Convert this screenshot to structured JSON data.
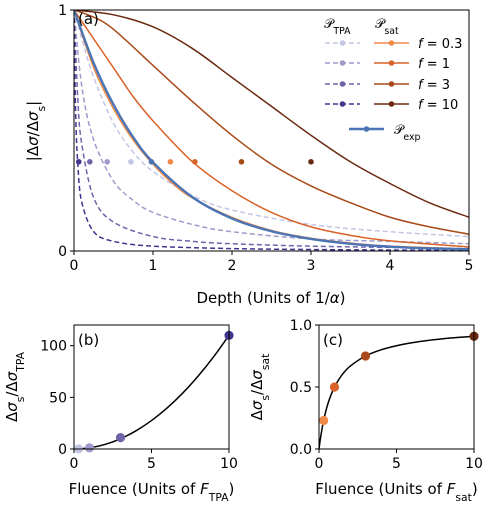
{
  "chart_data": [
    {
      "panel": "(a)",
      "type": "line",
      "xlabel": "Depth (Units of 1/α)",
      "ylabel": "|Δσ/Δσs|",
      "xlim": [
        0,
        5
      ],
      "ylim": [
        0,
        1
      ],
      "xticks": [
        "0",
        "1",
        "2",
        "3",
        "4",
        "5"
      ],
      "yticks": [
        "0",
        "1"
      ],
      "legend": {
        "placement": "top-right",
        "column_headers": [
          "𝒫_TPA",
          "𝒫_sat"
        ],
        "row_labels": [
          "f = 0.3",
          "f = 1",
          "f = 3",
          "f = 10"
        ],
        "exp_label": "𝒫_exp"
      },
      "series": [
        {
          "name": "P_TPA f=0.3",
          "style": "dashed",
          "color": "#c3c6e3",
          "x": [
            0,
            0.1,
            0.25,
            0.5,
            0.75,
            1,
            1.5,
            2,
            3,
            4,
            5
          ],
          "y": [
            1,
            0.88,
            0.72,
            0.53,
            0.41,
            0.33,
            0.23,
            0.17,
            0.11,
            0.08,
            0.06
          ]
        },
        {
          "name": "P_TPA f=1",
          "style": "dashed",
          "color": "#9e9acb",
          "x": [
            0,
            0.1,
            0.25,
            0.5,
            0.75,
            1,
            1.5,
            2,
            3,
            4,
            5
          ],
          "y": [
            1,
            0.68,
            0.46,
            0.29,
            0.21,
            0.16,
            0.11,
            0.08,
            0.05,
            0.04,
            0.03
          ]
        },
        {
          "name": "P_TPA f=3",
          "style": "dashed",
          "color": "#6e65a8",
          "x": [
            0,
            0.05,
            0.1,
            0.25,
            0.5,
            1,
            1.5,
            2,
            3,
            4,
            5
          ],
          "y": [
            1,
            0.62,
            0.44,
            0.22,
            0.12,
            0.06,
            0.04,
            0.03,
            0.02,
            0.015,
            0.01
          ]
        },
        {
          "name": "P_TPA f=10",
          "style": "dashed",
          "color": "#3f3690",
          "x": [
            0,
            0.02,
            0.05,
            0.1,
            0.25,
            0.5,
            1,
            2,
            3,
            4,
            5
          ],
          "y": [
            1,
            0.58,
            0.35,
            0.2,
            0.08,
            0.04,
            0.02,
            0.01,
            0.006,
            0.004,
            0.003
          ]
        },
        {
          "name": "P_sat f=0.3",
          "style": "solid",
          "color": "#f08a48",
          "x": [
            0,
            0.25,
            0.5,
            0.75,
            1,
            1.25,
            1.5,
            2,
            2.5,
            3,
            3.5,
            4,
            5
          ],
          "y": [
            1,
            0.76,
            0.59,
            0.46,
            0.36,
            0.28,
            0.22,
            0.14,
            0.085,
            0.053,
            0.033,
            0.02,
            0.008
          ]
        },
        {
          "name": "P_sat f=1",
          "style": "solid",
          "color": "#d96228",
          "x": [
            0,
            0.25,
            0.5,
            0.75,
            1,
            1.5,
            2,
            2.5,
            3,
            3.5,
            4,
            5
          ],
          "y": [
            1,
            0.88,
            0.76,
            0.64,
            0.54,
            0.37,
            0.25,
            0.16,
            0.1,
            0.065,
            0.042,
            0.017
          ]
        },
        {
          "name": "P_sat f=3",
          "style": "solid",
          "color": "#a84a18",
          "x": [
            0,
            0.25,
            0.5,
            1,
            1.5,
            2,
            2.5,
            3,
            3.5,
            4,
            4.5,
            5
          ],
          "y": [
            1,
            0.97,
            0.92,
            0.77,
            0.62,
            0.48,
            0.36,
            0.27,
            0.2,
            0.14,
            0.1,
            0.07
          ]
        },
        {
          "name": "P_sat f=10",
          "style": "solid",
          "color": "#6b2a10",
          "x": [
            0,
            0.5,
            1,
            1.5,
            2,
            2.5,
            3,
            3.5,
            4,
            4.5,
            5
          ],
          "y": [
            1,
            0.98,
            0.93,
            0.84,
            0.72,
            0.6,
            0.48,
            0.37,
            0.28,
            0.2,
            0.14
          ]
        },
        {
          "name": "P_exp",
          "style": "solid",
          "color": "#4a74b4",
          "x": [
            0,
            0.25,
            0.5,
            0.75,
            1,
            1.5,
            2,
            2.5,
            3,
            3.5,
            4,
            4.5,
            5
          ],
          "y": [
            1,
            0.779,
            0.607,
            0.472,
            0.368,
            0.223,
            0.135,
            0.082,
            0.05,
            0.03,
            0.018,
            0.011,
            0.007
          ]
        }
      ],
      "markers": [
        {
          "x": 0.06,
          "y": 0.37,
          "color": "#3f3690"
        },
        {
          "x": 0.2,
          "y": 0.37,
          "color": "#6e65a8"
        },
        {
          "x": 0.42,
          "y": 0.37,
          "color": "#9e9acb"
        },
        {
          "x": 0.72,
          "y": 0.37,
          "color": "#c3c6e3"
        },
        {
          "x": 0.98,
          "y": 0.37,
          "color": "#4a74b4"
        },
        {
          "x": 1.22,
          "y": 0.37,
          "color": "#f08a48"
        },
        {
          "x": 1.53,
          "y": 0.37,
          "color": "#d96228"
        },
        {
          "x": 2.12,
          "y": 0.37,
          "color": "#a84a18"
        },
        {
          "x": 3.0,
          "y": 0.37,
          "color": "#6b2a10"
        }
      ]
    },
    {
      "panel": "(b)",
      "type": "scatter",
      "xlabel": "Fluence (Units of F_TPA)",
      "ylabel": "Δσs/ΔσTPA",
      "xlim": [
        0,
        10
      ],
      "ylim": [
        0,
        120
      ],
      "xticks": [
        "0",
        "5",
        "10"
      ],
      "yticks": [
        "0",
        "50",
        "100"
      ],
      "points": [
        {
          "x": 0.3,
          "y": 0.1,
          "color": "#c3c6e3"
        },
        {
          "x": 1,
          "y": 1.1,
          "color": "#9e9acb"
        },
        {
          "x": 3,
          "y": 11,
          "color": "#6e65a8"
        },
        {
          "x": 10,
          "y": 110,
          "color": "#3f3690"
        }
      ],
      "curve": {
        "x": [
          0,
          1,
          2,
          3,
          4,
          5,
          6,
          7,
          8,
          9,
          10
        ],
        "y": [
          0,
          1.1,
          4.4,
          9.9,
          17.6,
          27.5,
          39.6,
          53.9,
          70.4,
          89.1,
          110
        ]
      }
    },
    {
      "panel": "(c)",
      "type": "scatter",
      "xlabel": "Fluence (Units of F_sat)",
      "ylabel": "Δσs/Δσsat",
      "xlim": [
        0,
        10
      ],
      "ylim": [
        0,
        1
      ],
      "xticks": [
        "0",
        "5",
        "10"
      ],
      "yticks": [
        "0.0",
        "0.5",
        "1.0"
      ],
      "points": [
        {
          "x": 0.3,
          "y": 0.23,
          "color": "#f08a48"
        },
        {
          "x": 1,
          "y": 0.5,
          "color": "#d96228"
        },
        {
          "x": 3,
          "y": 0.75,
          "color": "#a84a18"
        },
        {
          "x": 10,
          "y": 0.909,
          "color": "#6b2a10"
        }
      ],
      "curve": {
        "x": [
          0,
          0.1,
          0.3,
          0.6,
          1,
          1.5,
          2,
          3,
          4,
          5,
          6,
          7,
          8,
          9,
          10
        ],
        "y": [
          0,
          0.091,
          0.231,
          0.375,
          0.5,
          0.6,
          0.667,
          0.75,
          0.8,
          0.833,
          0.857,
          0.875,
          0.889,
          0.9,
          0.909
        ]
      }
    }
  ]
}
